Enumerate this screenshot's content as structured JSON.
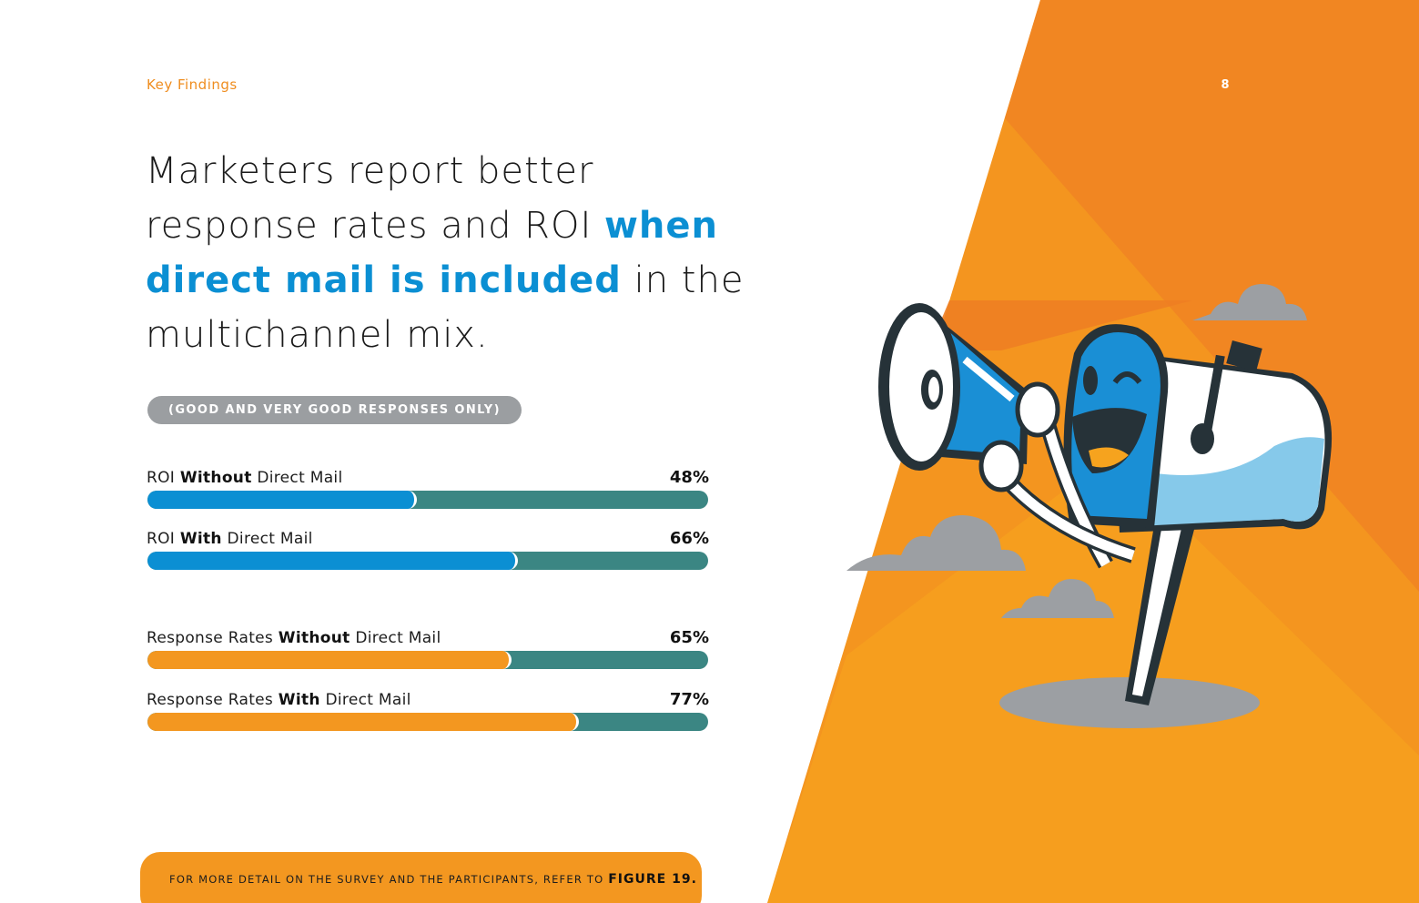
{
  "header": {
    "section_label": "Key Findings",
    "page_number": "8"
  },
  "headline": {
    "part1": "Marketers report better response rates and ROI ",
    "highlight": "when direct mail is included",
    "part2": " in the multichannel mix."
  },
  "filter_pill": "(GOOD AND VERY GOOD RESPONSES ONLY)",
  "bars": [
    {
      "label_pre": "ROI ",
      "label_bold": "Without",
      "label_post": " Direct Mail",
      "value_text": "48%",
      "value": 48,
      "color": "#0b8fd3"
    },
    {
      "label_pre": "ROI ",
      "label_bold": "With",
      "label_post": " Direct Mail",
      "value_text": "66%",
      "value": 66,
      "color": "#0b8fd3"
    },
    {
      "label_pre": "Response Rates ",
      "label_bold": "Without",
      "label_post": " Direct Mail",
      "value_text": "65%",
      "value": 65,
      "color": "#f39720"
    },
    {
      "label_pre": "Response Rates ",
      "label_bold": "With",
      "label_post": " Direct Mail",
      "value_text": "77%",
      "value": 77,
      "color": "#f39720"
    }
  ],
  "track_color": "#3b8683",
  "footer": {
    "text": "FOR MORE DETAIL ON THE SURVEY AND THE PARTICIPANTS, REFER TO",
    "figure_ref": "FIGURE 19."
  },
  "illustration": {
    "subject": "mailbox-mascot-with-megaphone-illustration"
  }
}
